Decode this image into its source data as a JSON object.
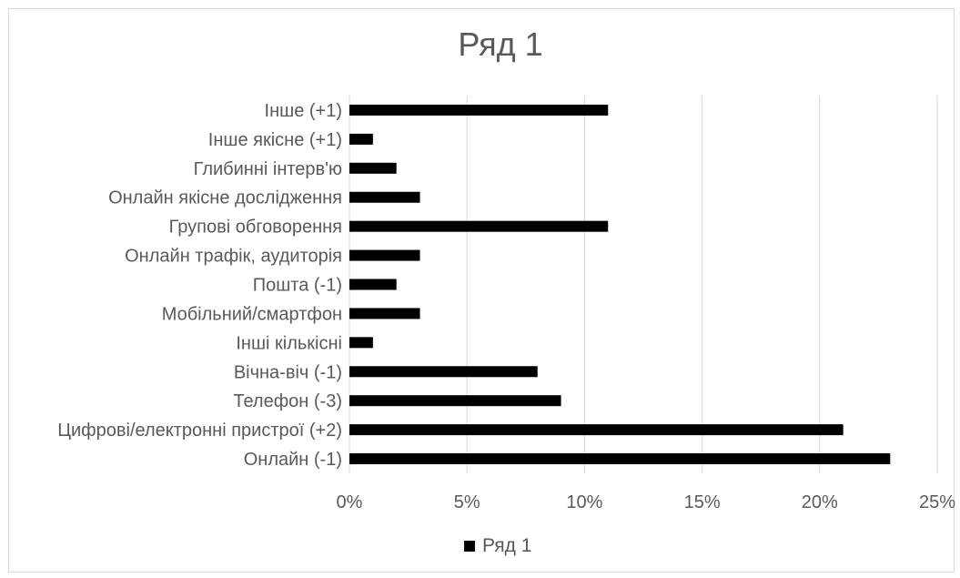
{
  "colors": {
    "bar": "#000000",
    "grid": "#d9d9d9",
    "text": "#595959"
  },
  "chart_data": {
    "type": "bar",
    "orientation": "horizontal",
    "title": "Ряд 1",
    "categories": [
      "Інше (+1)",
      "Інше якісне (+1)",
      "Глибинні інтерв'ю",
      "Онлайн якісне дослідження",
      "Групові обговорення",
      "Онлайн трафік, аудиторія",
      "Пошта (-1)",
      "Мобільний/смартфон",
      "Інші кількісні",
      "Вічна-віч (-1)",
      "Телефон (-3)",
      "Цифрові/електронні пристрої (+2)",
      "Онлайн (-1)"
    ],
    "series": [
      {
        "name": "Ряд 1",
        "values": [
          11,
          1,
          2,
          3,
          11,
          3,
          2,
          3,
          1,
          8,
          9,
          21,
          23
        ]
      }
    ],
    "xlim": [
      0,
      25
    ],
    "xticks": [
      "0%",
      "5%",
      "10%",
      "15%",
      "20%",
      "25%"
    ],
    "grid": true,
    "legend_position": "bottom"
  }
}
